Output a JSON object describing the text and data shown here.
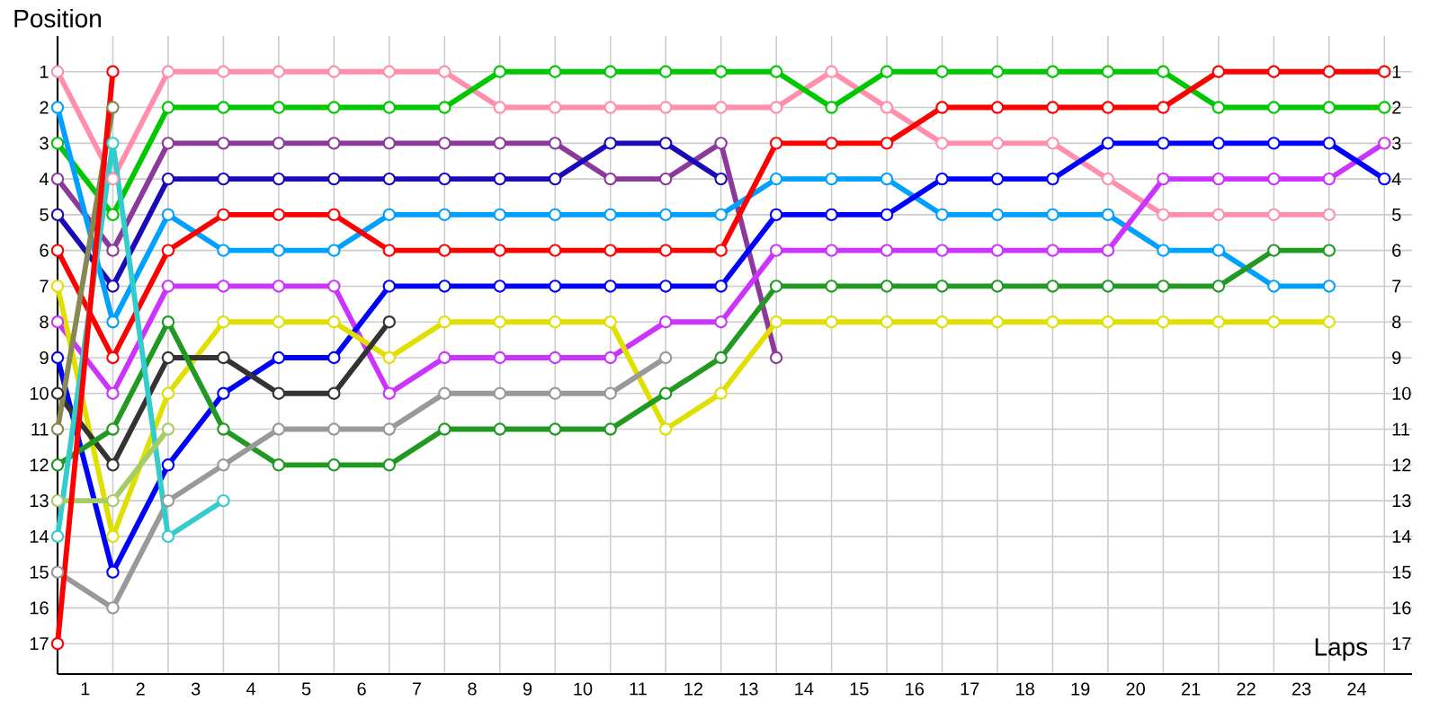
{
  "chart_data": {
    "type": "line",
    "xlabel": "Laps",
    "ylabel": "Position",
    "x": [
      0,
      1,
      2,
      3,
      4,
      5,
      6,
      7,
      8,
      9,
      10,
      11,
      12,
      13,
      14,
      15,
      16,
      17,
      18,
      19,
      20,
      21,
      22,
      23,
      24
    ],
    "xlim": [
      0,
      24.5
    ],
    "xticks": [
      {
        "value": 1,
        "label": null
      },
      {
        "value": 2,
        "label": null
      },
      {
        "value": 3,
        "label": null
      },
      {
        "value": 4,
        "label": null
      },
      {
        "value": 5,
        "label": null
      },
      {
        "value": 6,
        "label": null
      },
      {
        "value": 7,
        "label": null
      },
      {
        "value": 8,
        "label": null
      },
      {
        "value": 9,
        "label": null
      },
      {
        "value": 10,
        "label": null
      },
      {
        "value": 11,
        "label": null
      },
      {
        "value": 12,
        "label": null
      },
      {
        "value": 13,
        "label": null
      },
      {
        "value": 14,
        "label": null
      },
      {
        "value": 15,
        "label": null
      },
      {
        "value": 16,
        "label": null
      },
      {
        "value": 17,
        "label": null
      },
      {
        "value": 18,
        "label": null
      },
      {
        "value": 19,
        "label": null
      },
      {
        "value": 20,
        "label": null
      },
      {
        "value": 21,
        "label": null
      },
      {
        "value": 22,
        "label": null
      },
      {
        "value": 23,
        "label": null
      },
      {
        "value": 24,
        "label": null
      },
      {
        "value": 0.5,
        "label": "1"
      },
      {
        "value": 1.5,
        "label": "2"
      },
      {
        "value": 2.5,
        "label": "3"
      },
      {
        "value": 3.5,
        "label": "4"
      },
      {
        "value": 4.5,
        "label": "5"
      },
      {
        "value": 5.5,
        "label": "6"
      },
      {
        "value": 6.5,
        "label": "7"
      },
      {
        "value": 7.5,
        "label": "8"
      },
      {
        "value": 8.5,
        "label": "9"
      },
      {
        "value": 9.5,
        "label": "10"
      },
      {
        "value": 10.5,
        "label": "11"
      },
      {
        "value": 11.5,
        "label": "12"
      },
      {
        "value": 12.5,
        "label": "13"
      },
      {
        "value": 13.5,
        "label": "14"
      },
      {
        "value": 14.5,
        "label": "15"
      },
      {
        "value": 15.5,
        "label": "16"
      },
      {
        "value": 16.5,
        "label": "17"
      },
      {
        "value": 17.5,
        "label": "18"
      },
      {
        "value": 18.5,
        "label": "19"
      },
      {
        "value": 19.5,
        "label": "20"
      },
      {
        "value": 20.5,
        "label": "21"
      },
      {
        "value": 21.5,
        "label": "22"
      },
      {
        "value": 22.5,
        "label": "23"
      },
      {
        "value": 23.5,
        "label": "24"
      }
    ],
    "ylim": [
      17.85,
      0
    ],
    "yticks": [
      1,
      2,
      3,
      4,
      5,
      6,
      7,
      8,
      9,
      10,
      11,
      12,
      13,
      14,
      15,
      16,
      17
    ],
    "y2lim": [
      17.85,
      0
    ],
    "y2ticks": [
      1,
      2,
      3,
      4,
      5,
      6,
      7,
      8,
      9,
      10,
      11,
      12,
      13,
      14,
      15,
      16,
      17
    ],
    "grid": true,
    "marker": "circle",
    "line_style": "solid",
    "series": [
      {
        "color": "#ff8fab",
        "values": [
          1,
          4,
          1,
          1,
          1,
          1,
          1,
          1,
          2,
          2,
          2,
          2,
          2,
          2,
          1,
          2,
          3,
          3,
          3,
          4,
          5,
          5,
          5,
          5,
          null
        ]
      },
      {
        "color": "#00c800",
        "values": [
          3,
          5,
          2,
          2,
          2,
          2,
          2,
          2,
          1,
          1,
          1,
          1,
          1,
          1,
          2,
          1,
          1,
          1,
          1,
          1,
          1,
          2,
          2,
          2,
          2
        ]
      },
      {
        "color": "#8b3a9b",
        "values": [
          4,
          6,
          3,
          3,
          3,
          3,
          3,
          3,
          3,
          3,
          4,
          4,
          3,
          9,
          null,
          null,
          null,
          null,
          null,
          null,
          null,
          null,
          null,
          null,
          null
        ]
      },
      {
        "color": "#1a0ab8",
        "values": [
          5,
          7,
          4,
          4,
          4,
          4,
          4,
          4,
          4,
          4,
          3,
          3,
          4,
          null,
          null,
          null,
          null,
          null,
          null,
          null,
          null,
          null,
          null,
          null,
          null
        ]
      },
      {
        "color": "#00a0ff",
        "values": [
          2,
          8,
          5,
          6,
          6,
          6,
          5,
          5,
          5,
          5,
          5,
          5,
          5,
          4,
          4,
          4,
          5,
          5,
          5,
          5,
          6,
          6,
          7,
          7,
          null
        ]
      },
      {
        "color": "#ff0000",
        "values": [
          6,
          9,
          6,
          5,
          5,
          5,
          6,
          6,
          6,
          6,
          6,
          6,
          6,
          3,
          3,
          3,
          2,
          2,
          2,
          2,
          2,
          1,
          1,
          1,
          1
        ]
      },
      {
        "color": "#cc33ff",
        "values": [
          8,
          10,
          7,
          7,
          7,
          7,
          10,
          9,
          9,
          9,
          9,
          8,
          8,
          6,
          6,
          6,
          6,
          6,
          6,
          6,
          4,
          4,
          4,
          4,
          3
        ]
      },
      {
        "color": "#0000ff",
        "values": [
          9,
          15,
          12,
          10,
          9,
          9,
          7,
          7,
          7,
          7,
          7,
          7,
          7,
          5,
          5,
          5,
          4,
          4,
          4,
          3,
          3,
          3,
          3,
          3,
          4
        ]
      },
      {
        "color": "#e0e000",
        "values": [
          7,
          14,
          10,
          8,
          8,
          8,
          9,
          8,
          8,
          8,
          8,
          11,
          10,
          8,
          8,
          8,
          8,
          8,
          8,
          8,
          8,
          8,
          8,
          8,
          null
        ]
      },
      {
        "color": "#333333",
        "values": [
          10,
          12,
          9,
          9,
          10,
          10,
          8,
          null,
          null,
          null,
          null,
          null,
          null,
          null,
          null,
          null,
          null,
          null,
          null,
          null,
          null,
          null,
          null,
          null,
          null
        ]
      },
      {
        "color": "#229922",
        "values": [
          12,
          11,
          8,
          11,
          12,
          12,
          12,
          11,
          11,
          11,
          11,
          10,
          9,
          7,
          7,
          7,
          7,
          7,
          7,
          7,
          7,
          7,
          6,
          6,
          null
        ]
      },
      {
        "color": "#999999",
        "values": [
          15,
          16,
          13,
          12,
          11,
          11,
          11,
          10,
          10,
          10,
          10,
          9,
          null,
          null,
          null,
          null,
          null,
          null,
          null,
          null,
          null,
          null,
          null,
          null,
          null
        ]
      },
      {
        "color": "#33cccc",
        "values": [
          14,
          3,
          14,
          13,
          null,
          null,
          null,
          null,
          null,
          null,
          null,
          null,
          null,
          null,
          null,
          null,
          null,
          null,
          null,
          null,
          null,
          null,
          null,
          null,
          null
        ]
      },
      {
        "color": "#a6cc66",
        "values": [
          13,
          13,
          11,
          null,
          null,
          null,
          null,
          null,
          null,
          null,
          null,
          null,
          null,
          null,
          null,
          null,
          null,
          null,
          null,
          null,
          null,
          null,
          null,
          null,
          null
        ]
      },
      {
        "color": "#888855",
        "values": [
          11,
          2,
          null,
          null,
          null,
          null,
          null,
          null,
          null,
          null,
          null,
          null,
          null,
          null,
          null,
          null,
          null,
          null,
          null,
          null,
          null,
          null,
          null,
          null,
          null
        ]
      },
      {
        "color": "#ff0000",
        "values": [
          17,
          1,
          null,
          null,
          null,
          null,
          null,
          null,
          null,
          null,
          null,
          null,
          null,
          null,
          null,
          null,
          null,
          null,
          null,
          null,
          null,
          null,
          null,
          null,
          null
        ]
      }
    ]
  }
}
